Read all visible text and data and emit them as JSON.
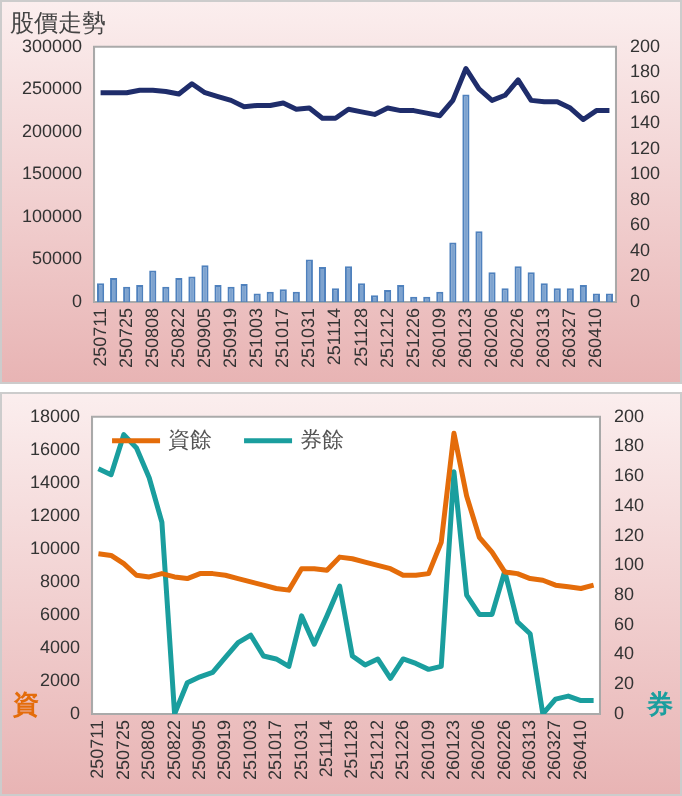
{
  "chart_data": [
    {
      "type": "bar",
      "title": "股價走勢",
      "categories": [
        "250711",
        null,
        "250725",
        null,
        "250808",
        null,
        "250822",
        null,
        "250905",
        null,
        "250919",
        null,
        "251003",
        null,
        "251017",
        null,
        "251031",
        null,
        "251114",
        null,
        "251128",
        null,
        "251212",
        null,
        "251226",
        null,
        "260109",
        null,
        "260123",
        null,
        "260206",
        null,
        "260226",
        null,
        "260313",
        null,
        "260327",
        null,
        "260410",
        null
      ],
      "series": [
        {
          "axis": "y",
          "color": "#4f81bd",
          "values": [
            22000,
            28000,
            18000,
            20000,
            37000,
            18000,
            28000,
            30000,
            43000,
            20000,
            18000,
            21000,
            10000,
            12000,
            15000,
            12000,
            50000,
            41000,
            16000,
            42000,
            22000,
            8000,
            14000,
            20000,
            6000,
            6000,
            12000,
            70000,
            244000,
            83000,
            35000,
            16000,
            42000,
            35000,
            22000,
            16000,
            16000,
            20000,
            10000,
            10000
          ]
        },
        {
          "type": "line",
          "axis": "y2",
          "color": "#1f2d6b",
          "values": [
            164,
            164,
            164,
            166,
            166,
            165,
            163,
            171,
            164,
            161,
            158,
            153,
            154,
            154,
            156,
            151,
            152,
            144,
            144,
            151,
            149,
            147,
            152,
            150,
            150,
            148,
            146,
            158,
            183,
            167,
            158,
            162,
            174,
            158,
            157,
            157,
            152,
            143,
            150,
            150
          ]
        }
      ],
      "ylim": [
        0,
        300000
      ],
      "yticks": [
        0,
        50000,
        100000,
        150000,
        200000,
        250000,
        300000
      ],
      "y2lim": [
        0,
        200
      ],
      "y2ticks": [
        0,
        20,
        40,
        60,
        80,
        100,
        120,
        140,
        160,
        180,
        200
      ],
      "grid": false,
      "legend": false
    },
    {
      "type": "line",
      "ylabel": "資",
      "y2label": "券",
      "categories": [
        "250711",
        null,
        "250725",
        null,
        "250808",
        null,
        "250822",
        null,
        "250905",
        null,
        "250919",
        null,
        "251003",
        null,
        "251017",
        null,
        "251031",
        null,
        "251114",
        null,
        "251128",
        null,
        "251212",
        null,
        "251226",
        null,
        "260109",
        null,
        "260123",
        null,
        "260206",
        null,
        "260226",
        null,
        "260313",
        null,
        "260327",
        null,
        "260410",
        null
      ],
      "series": [
        {
          "name": "資餘",
          "axis": "y",
          "color": "#e46c0a",
          "values": [
            9700,
            9600,
            9100,
            8400,
            8300,
            8500,
            8300,
            8200,
            8500,
            8500,
            8400,
            8200,
            8000,
            7800,
            7600,
            7500,
            8800,
            8800,
            8700,
            9500,
            9400,
            9200,
            9000,
            8800,
            8400,
            8400,
            8500,
            10400,
            17000,
            13200,
            10700,
            9800,
            8600,
            8500,
            8200,
            8100,
            7800,
            7700,
            7600,
            7800
          ]
        },
        {
          "name": "券餘",
          "axis": "y2",
          "color": "#1a9e9e",
          "values": [
            165,
            161,
            188,
            179,
            159,
            129,
            0,
            21,
            25,
            28,
            38,
            48,
            53,
            39,
            37,
            32,
            66,
            47,
            66,
            86,
            39,
            33,
            37,
            24,
            37,
            34,
            30,
            32,
            163,
            80,
            67,
            67,
            96,
            62,
            54,
            0,
            10,
            12,
            9,
            9
          ]
        }
      ],
      "ylim": [
        0,
        18000
      ],
      "yticks": [
        0,
        2000,
        4000,
        6000,
        8000,
        10000,
        12000,
        14000,
        16000,
        18000
      ],
      "y2lim": [
        0,
        200
      ],
      "y2ticks": [
        0,
        20,
        40,
        60,
        80,
        100,
        120,
        140,
        160,
        180,
        200
      ],
      "grid": false,
      "legend": "top left",
      "marker": "none",
      "line_style": "solid"
    }
  ]
}
